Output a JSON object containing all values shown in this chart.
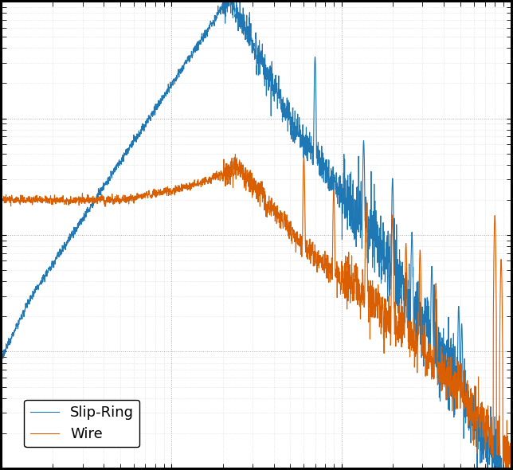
{
  "title": "",
  "xlabel": "",
  "ylabel": "",
  "xlim": [
    1,
    1000
  ],
  "ylim": [
    1e-09,
    1e-05
  ],
  "slip_ring_color": "#1f77b4",
  "wire_color": "#d95f02",
  "line_width": 0.8,
  "legend_labels": [
    "Slip-Ring",
    "Wire"
  ],
  "legend_loc": "lower left",
  "background_color": "#ffffff",
  "fig_facecolor": "#000000",
  "figsize": [
    6.44,
    5.9
  ],
  "dpi": 100,
  "grid_color": "#aaaaaa",
  "grid_minor_color": "#cccccc"
}
